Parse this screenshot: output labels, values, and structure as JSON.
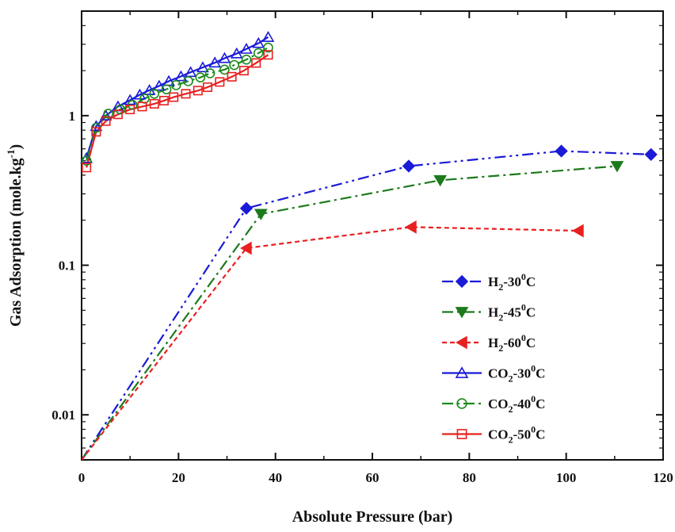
{
  "chart_data": {
    "type": "line",
    "xlabel": "Absolute Pressure (bar)",
    "ylabel_parts": [
      "Gas Adsorption (mole.kg",
      "-1",
      ")"
    ],
    "xlim": [
      0,
      120
    ],
    "ylim": [
      0.005,
      5
    ],
    "yscale": "log",
    "x_ticks": [
      0,
      20,
      40,
      60,
      80,
      100,
      120
    ],
    "y_ticks": [
      0.01,
      0.1,
      1
    ],
    "y_tick_labels": [
      "0.01",
      "0.1",
      "1"
    ],
    "grid": false,
    "legend_position": "bottom-right",
    "series": [
      {
        "name": "H2-30°C",
        "label_parts": [
          "H",
          "2",
          "-30",
          "0",
          "C"
        ],
        "color": "#1a1ad8",
        "marker": "diamond",
        "filled": true,
        "dash": "14 5 3 5 3 5",
        "x": [
          0,
          34,
          67.5,
          99,
          117.5
        ],
        "y": [
          0.005,
          0.24,
          0.46,
          0.58,
          0.55
        ]
      },
      {
        "name": "H2-45°C",
        "label_parts": [
          "H",
          "2",
          "-45",
          "0",
          "C"
        ],
        "color": "#1c7a1c",
        "marker": "triangle-down",
        "filled": true,
        "dash": "14 5 3 5",
        "x": [
          0,
          37,
          74,
          110.5
        ],
        "y": [
          0.005,
          0.22,
          0.37,
          0.46
        ]
      },
      {
        "name": "H2-60°C",
        "label_parts": [
          "H",
          "2",
          "-60",
          "0",
          "C"
        ],
        "color": "#e82020",
        "marker": "triangle-left",
        "filled": true,
        "dash": "6 4",
        "x": [
          0,
          34,
          68,
          102.5
        ],
        "y": [
          0.005,
          0.13,
          0.18,
          0.17
        ]
      },
      {
        "name": "CO2-30°C",
        "label_parts": [
          "CO",
          "2",
          "-30",
          "0",
          "C"
        ],
        "color": "#1a1ad8",
        "marker": "triangle-up",
        "filled": false,
        "dash": "",
        "x": [
          1,
          3,
          5,
          7.5,
          10,
          12,
          14,
          16,
          18,
          20.5,
          22.5,
          25,
          27.5,
          29.5,
          32,
          34,
          36.5,
          38.5
        ],
        "y": [
          0.52,
          0.85,
          1.0,
          1.15,
          1.27,
          1.38,
          1.48,
          1.58,
          1.7,
          1.83,
          1.95,
          2.1,
          2.26,
          2.42,
          2.6,
          2.79,
          3.05,
          3.35
        ]
      },
      {
        "name": "CO2-40°C",
        "label_parts": [
          "CO",
          "2",
          "-40",
          "0",
          "C"
        ],
        "color": "#1c8a1c",
        "marker": "circle",
        "filled": false,
        "dash": "14 5 3 5",
        "x": [
          1,
          3,
          5.5,
          8,
          10.5,
          13,
          15,
          17.5,
          19.5,
          22,
          24.5,
          26.5,
          29.5,
          31.5,
          34,
          36.5,
          38.5
        ],
        "y": [
          0.5,
          0.83,
          1.03,
          1.1,
          1.18,
          1.3,
          1.4,
          1.5,
          1.6,
          1.7,
          1.8,
          1.92,
          2.03,
          2.18,
          2.37,
          2.62,
          2.85
        ]
      },
      {
        "name": "CO2-50°C",
        "label_parts": [
          "CO",
          "2",
          "-50",
          "0",
          "C"
        ],
        "color": "#e82020",
        "marker": "square",
        "filled": false,
        "dash": "",
        "x": [
          1,
          3,
          5,
          7.5,
          10,
          12.5,
          15,
          17,
          19,
          21.5,
          24,
          26,
          28.5,
          31,
          33.5,
          36,
          38.5
        ],
        "y": [
          0.45,
          0.78,
          0.92,
          1.02,
          1.1,
          1.15,
          1.2,
          1.26,
          1.33,
          1.4,
          1.47,
          1.55,
          1.68,
          1.82,
          2.0,
          2.25,
          2.55
        ]
      }
    ]
  }
}
